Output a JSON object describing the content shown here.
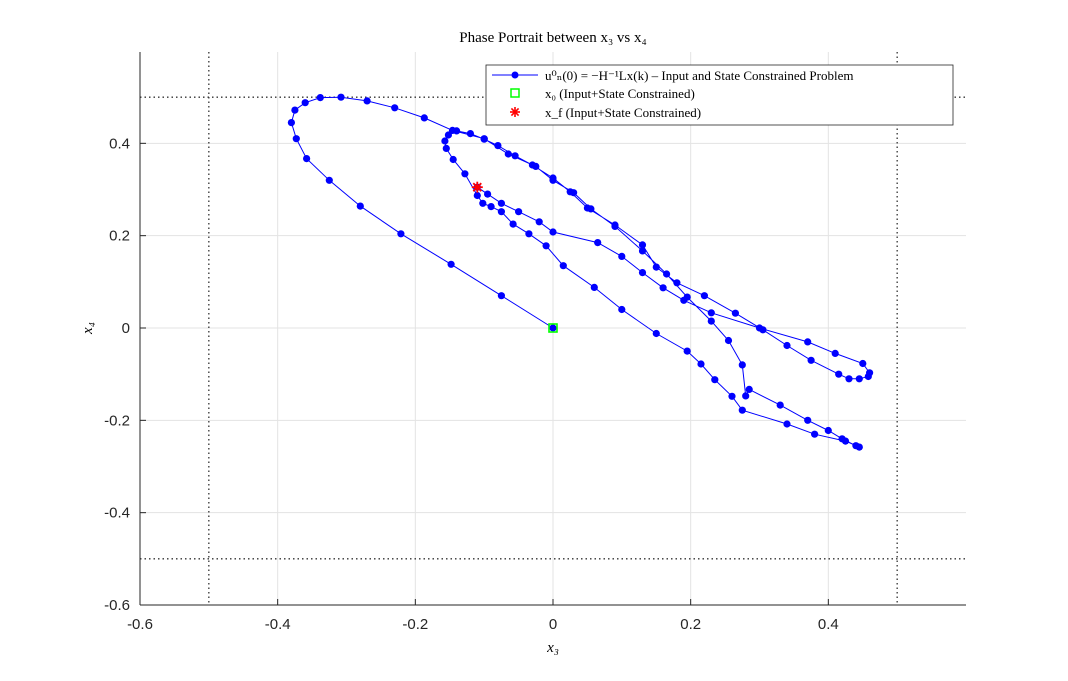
{
  "chart_data": {
    "type": "line",
    "title": "Phase Portrait between x₃ vs x₄",
    "xlabel": "x₃",
    "ylabel": "x₄",
    "xlim": [
      -0.6,
      0.6
    ],
    "ylim": [
      -0.6,
      0.6
    ],
    "xticks": [
      -0.6,
      -0.4,
      -0.2,
      0,
      0.2,
      0.4
    ],
    "yticks": [
      -0.6,
      -0.4,
      -0.2,
      0,
      0.2,
      0.4
    ],
    "xtick_labels": [
      "-0.6",
      "-0.4",
      "-0.2",
      "0",
      "0.2",
      "0.4"
    ],
    "ytick_labels": [
      "-0.6",
      "-0.4",
      "-0.2",
      "0",
      "0.2",
      "0.4"
    ],
    "grid": true,
    "legend_position": "top-right",
    "constraints": {
      "x3": [
        -0.5,
        0.5
      ],
      "x4": [
        -0.5,
        0.5
      ]
    },
    "series": [
      {
        "name": "u⁰ₙ(0) = −H⁻¹Lx(k) – Input and State Constrained Problem",
        "color": "#0000ff",
        "marker": "dot",
        "x": [
          0,
          -0.075,
          -0.148,
          -0.221,
          -0.28,
          -0.325,
          -0.358,
          -0.373,
          -0.38,
          -0.375,
          -0.36,
          -0.338,
          -0.308,
          -0.27,
          -0.23,
          -0.187,
          -0.146,
          -0.1,
          -0.065,
          -0.025,
          0.0,
          0.03,
          0.055,
          0.09,
          0.13,
          0.165,
          0.195,
          0.23,
          0.255,
          0.275,
          0.28,
          0.285,
          0.33,
          0.37,
          0.4,
          0.42,
          0.44,
          0.445,
          0.425,
          0.38,
          0.34,
          0.275,
          0.26,
          0.235,
          0.215,
          0.195,
          0.15,
          0.1,
          0.06,
          0.015,
          -0.01,
          -0.035,
          -0.058,
          -0.075,
          -0.09,
          -0.102,
          -0.11,
          -0.128,
          -0.145,
          -0.155,
          -0.157,
          -0.152,
          -0.14,
          -0.12,
          -0.1,
          -0.08,
          -0.055,
          -0.03,
          0.0,
          0.025,
          0.05,
          0.09,
          0.13,
          0.15,
          0.18,
          0.22,
          0.265,
          0.305,
          0.34,
          0.375,
          0.415,
          0.43,
          0.445,
          0.458,
          0.46,
          0.45,
          0.41,
          0.37,
          0.3,
          0.23,
          0.19,
          0.16,
          0.13,
          0.1,
          0.065,
          0.0,
          -0.02,
          -0.05,
          -0.075,
          -0.095,
          -0.11
        ],
        "y": [
          0,
          0.07,
          0.138,
          0.204,
          0.264,
          0.32,
          0.367,
          0.41,
          0.445,
          0.472,
          0.488,
          0.499,
          0.5,
          0.492,
          0.477,
          0.455,
          0.428,
          0.41,
          0.377,
          0.35,
          0.32,
          0.293,
          0.258,
          0.22,
          0.167,
          0.117,
          0.067,
          0.015,
          -0.027,
          -0.08,
          -0.147,
          -0.133,
          -0.167,
          -0.2,
          -0.222,
          -0.24,
          -0.255,
          -0.258,
          -0.245,
          -0.23,
          -0.208,
          -0.178,
          -0.148,
          -0.112,
          -0.078,
          -0.05,
          -0.012,
          0.04,
          0.088,
          0.135,
          0.178,
          0.204,
          0.225,
          0.252,
          0.263,
          0.27,
          0.287,
          0.334,
          0.365,
          0.389,
          0.405,
          0.418,
          0.427,
          0.421,
          0.409,
          0.395,
          0.373,
          0.353,
          0.325,
          0.295,
          0.26,
          0.223,
          0.18,
          0.132,
          0.098,
          0.07,
          0.032,
          -0.004,
          -0.038,
          -0.07,
          -0.1,
          -0.11,
          -0.11,
          -0.105,
          -0.097,
          -0.077,
          -0.055,
          -0.03,
          0.0,
          0.033,
          0.06,
          0.087,
          0.12,
          0.155,
          0.185,
          0.208,
          0.23,
          0.252,
          0.27,
          0.29,
          0.305
        ]
      }
    ],
    "markers": [
      {
        "name": "x₀ (Input+State Constrained)",
        "x": 0,
        "y": 0,
        "symbol": "square",
        "color": "#00ff00"
      },
      {
        "name": "x_f (Input+State Constrained)",
        "x": -0.11,
        "y": 0.305,
        "symbol": "asterisk",
        "color": "#ff0000"
      }
    ]
  },
  "legend": {
    "entries": [
      "u⁰ₙ(0) = −H⁻¹Lx(k) – Input and State Constrained Problem",
      "x₀ (Input+State Constrained)",
      "x_f (Input+State Constrained)"
    ]
  }
}
